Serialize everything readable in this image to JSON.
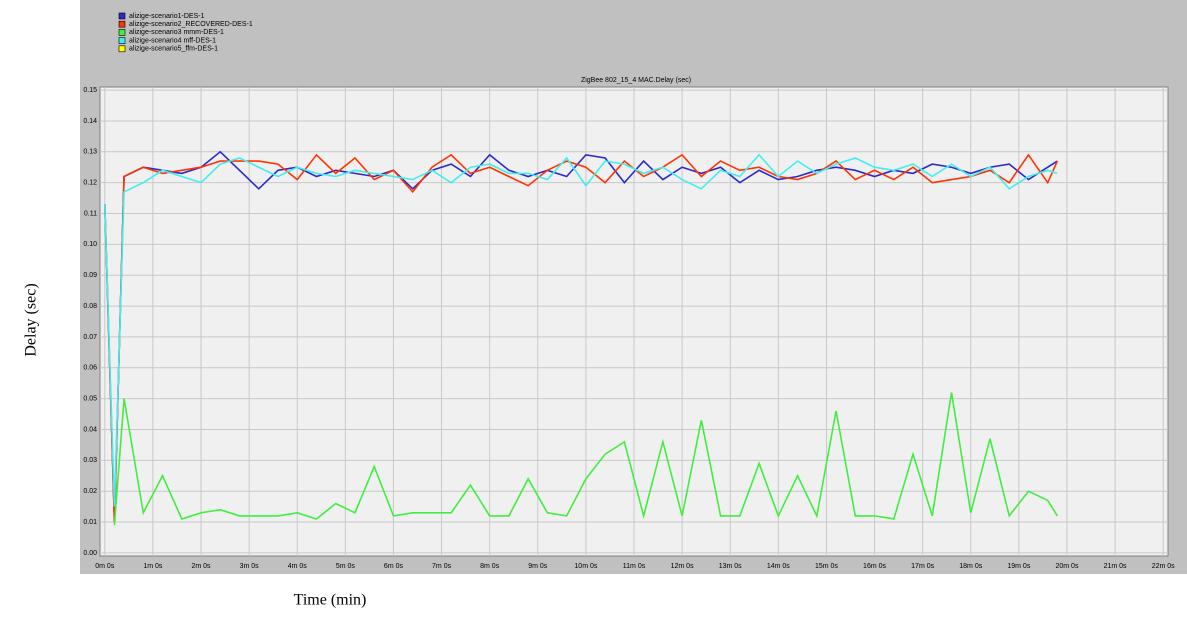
{
  "chart_data": {
    "type": "line",
    "title": "ZigBee 802_15_4 MAC.Delay (sec)",
    "x_label": "Time (min)",
    "y_label": "Delay (sec)",
    "x": [
      0,
      0.2,
      0.4,
      0.8,
      1.2,
      1.6,
      2.0,
      2.4,
      2.8,
      3.2,
      3.6,
      4.0,
      4.4,
      4.8,
      5.2,
      5.6,
      6.0,
      6.4,
      6.8,
      7.2,
      7.6,
      8.0,
      8.4,
      8.8,
      9.2,
      9.6,
      10.0,
      10.4,
      10.8,
      11.2,
      11.6,
      12.0,
      12.4,
      12.8,
      13.2,
      13.6,
      14.0,
      14.4,
      14.8,
      15.2,
      15.6,
      16.0,
      16.4,
      16.8,
      17.2,
      17.6,
      18.0,
      18.4,
      18.8,
      19.2,
      19.6,
      19.8
    ],
    "series": [
      {
        "name": "alizige-scenario1-DES-1",
        "color": "#2a2acc",
        "values": [
          0.113,
          0.01,
          0.122,
          0.125,
          0.124,
          0.123,
          0.125,
          0.13,
          0.124,
          0.118,
          0.124,
          0.125,
          0.122,
          0.124,
          0.123,
          0.122,
          0.124,
          0.118,
          0.124,
          0.126,
          0.122,
          0.129,
          0.124,
          0.122,
          0.124,
          0.122,
          0.129,
          0.128,
          0.12,
          0.127,
          0.121,
          0.125,
          0.123,
          0.125,
          0.12,
          0.124,
          0.121,
          0.122,
          0.124,
          0.125,
          0.124,
          0.122,
          0.124,
          0.123,
          0.126,
          0.125,
          0.123,
          0.125,
          0.126,
          0.121,
          0.125,
          0.127
        ]
      },
      {
        "name": "alizige-scenario2_RECOVERED-DES-1",
        "color": "#ff3300",
        "values": [
          0.113,
          0.01,
          0.122,
          0.125,
          0.123,
          0.124,
          0.125,
          0.127,
          0.127,
          0.127,
          0.126,
          0.121,
          0.129,
          0.123,
          0.128,
          0.121,
          0.124,
          0.117,
          0.125,
          0.129,
          0.123,
          0.125,
          0.122,
          0.119,
          0.124,
          0.127,
          0.125,
          0.12,
          0.127,
          0.122,
          0.125,
          0.129,
          0.122,
          0.127,
          0.124,
          0.125,
          0.122,
          0.121,
          0.123,
          0.127,
          0.121,
          0.124,
          0.121,
          0.125,
          0.12,
          0.121,
          0.122,
          0.124,
          0.12,
          0.129,
          0.12,
          0.127
        ]
      },
      {
        "name": "alizige-scenario3 mmm-DES-1",
        "color": "#40ee40",
        "values": [
          null,
          0.009,
          0.05,
          0.013,
          0.025,
          0.011,
          0.013,
          0.014,
          0.012,
          0.012,
          0.012,
          0.013,
          0.011,
          0.016,
          0.013,
          0.028,
          0.012,
          0.013,
          0.013,
          0.013,
          0.022,
          0.012,
          0.012,
          0.024,
          0.013,
          0.012,
          0.024,
          0.032,
          0.036,
          0.012,
          0.036,
          0.012,
          0.043,
          0.012,
          0.012,
          0.029,
          0.012,
          0.025,
          0.012,
          0.046,
          0.012,
          0.012,
          0.011,
          0.032,
          0.012,
          0.052,
          0.013,
          0.037,
          0.012,
          0.02,
          0.017,
          0.012
        ]
      },
      {
        "name": "alizige-scenario4 mff-DES-1",
        "color": "#40eeee",
        "values": [
          0.113,
          0.015,
          0.117,
          0.12,
          0.124,
          0.122,
          0.12,
          0.126,
          0.128,
          0.125,
          0.122,
          0.125,
          0.123,
          0.122,
          0.124,
          0.123,
          0.122,
          0.121,
          0.124,
          0.12,
          0.125,
          0.126,
          0.123,
          0.123,
          0.121,
          0.128,
          0.119,
          0.127,
          0.126,
          0.123,
          0.125,
          0.121,
          0.118,
          0.124,
          0.122,
          0.129,
          0.122,
          0.127,
          0.123,
          0.126,
          0.128,
          0.125,
          0.124,
          0.126,
          0.122,
          0.126,
          0.122,
          0.125,
          0.118,
          0.122,
          0.124,
          0.123
        ]
      },
      {
        "name": "alizige-scenario5_ffm-DES-1",
        "color": "#ffff00",
        "values": [
          null,
          null,
          null,
          null,
          null,
          null,
          null,
          null,
          null,
          null,
          null,
          null,
          null,
          null,
          null,
          null,
          null,
          null,
          null,
          null,
          null,
          null,
          null,
          null,
          null,
          null,
          null,
          null,
          null,
          null,
          null,
          null,
          null,
          null,
          null,
          null,
          null,
          null,
          null,
          null,
          null,
          null,
          null,
          null,
          null,
          null,
          null,
          null,
          null,
          null,
          null,
          null
        ]
      }
    ],
    "xlim": [
      -0.1,
      22.1
    ],
    "ylim": [
      -0.001,
      0.151
    ],
    "xticks": [
      {
        "value": 0,
        "label": "0m 0s"
      },
      {
        "value": 1,
        "label": "1m 0s"
      },
      {
        "value": 2,
        "label": "2m 0s"
      },
      {
        "value": 3,
        "label": "3m 0s"
      },
      {
        "value": 4,
        "label": "4m 0s"
      },
      {
        "value": 5,
        "label": "5m 0s"
      },
      {
        "value": 6,
        "label": "6m 0s"
      },
      {
        "value": 7,
        "label": "7m 0s"
      },
      {
        "value": 8,
        "label": "8m 0s"
      },
      {
        "value": 9,
        "label": "9m 0s"
      },
      {
        "value": 10,
        "label": "10m 0s"
      },
      {
        "value": 11,
        "label": "11m 0s"
      },
      {
        "value": 12,
        "label": "12m 0s"
      },
      {
        "value": 13,
        "label": "13m 0s"
      },
      {
        "value": 14,
        "label": "14m 0s"
      },
      {
        "value": 15,
        "label": "15m 0s"
      },
      {
        "value": 16,
        "label": "16m 0s"
      },
      {
        "value": 17,
        "label": "17m 0s"
      },
      {
        "value": 18,
        "label": "18m 0s"
      },
      {
        "value": 19,
        "label": "19m 0s"
      },
      {
        "value": 20,
        "label": "20m 0s"
      },
      {
        "value": 21,
        "label": "21m 0s"
      },
      {
        "value": 22,
        "label": "22m 0s"
      }
    ],
    "yticks": [
      {
        "value": 0,
        "label": "0.00"
      },
      {
        "value": 0.01,
        "label": "0.01"
      },
      {
        "value": 0.02,
        "label": "0.02"
      },
      {
        "value": 0.03,
        "label": "0.03"
      },
      {
        "value": 0.04,
        "label": "0.04"
      },
      {
        "value": 0.05,
        "label": "0.05"
      },
      {
        "value": 0.06,
        "label": "0.06"
      },
      {
        "value": 0.07,
        "label": "0.07"
      },
      {
        "value": 0.08,
        "label": "0.08"
      },
      {
        "value": 0.09,
        "label": "0.09"
      },
      {
        "value": 0.1,
        "label": "0.10"
      },
      {
        "value": 0.11,
        "label": "0.11"
      },
      {
        "value": 0.12,
        "label": "0.12"
      },
      {
        "value": 0.13,
        "label": "0.13"
      },
      {
        "value": 0.14,
        "label": "0.14"
      },
      {
        "value": 0.15,
        "label": "0.15"
      }
    ],
    "grid": true
  }
}
